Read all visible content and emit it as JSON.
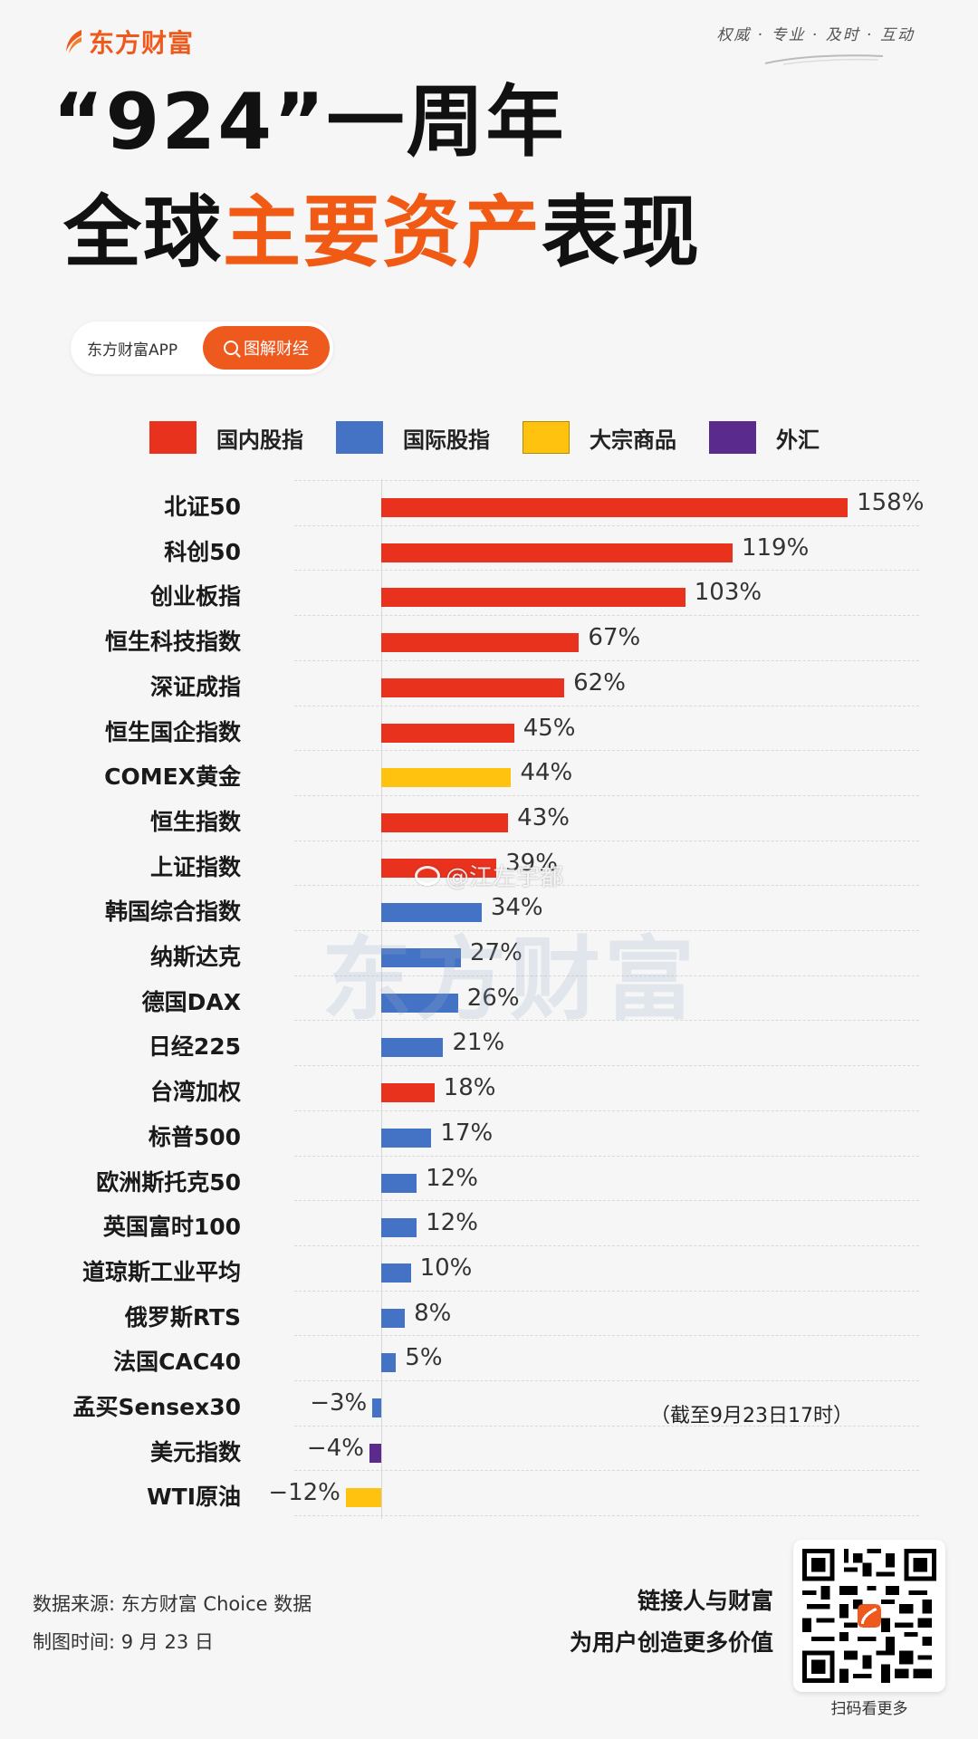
{
  "header": {
    "brand": "东方财富",
    "slogan": "权威 · 专业 · 及时 · 互动"
  },
  "title": {
    "line1": "“924”一周年",
    "line2_prefix": "全球",
    "line2_highlight": "主要资产",
    "line2_suffix": "表现"
  },
  "search_pill": {
    "brand_text": "东方财富APP",
    "button_label": "图解财经"
  },
  "colors": {
    "domestic": "#e8321e",
    "international": "#4472c4",
    "commodity": "#ffc20e",
    "forex": "#5a2a8c",
    "accent": "#ee5a1e"
  },
  "legend": [
    {
      "label": "国内股指",
      "color": "#e8321e"
    },
    {
      "label": "国际股指",
      "color": "#4472c4"
    },
    {
      "label": "大宗商品",
      "color": "#ffc20e"
    },
    {
      "label": "外汇",
      "color": "#5a2a8c"
    }
  ],
  "chart_data": {
    "type": "bar",
    "orientation": "horizontal",
    "title": "“924”一周年 全球主要资产表现",
    "xlabel": "",
    "ylabel": "",
    "unit": "%",
    "grid": true,
    "legend_position": "top",
    "categories": [
      "北证50",
      "科创50",
      "创业板指",
      "恒生科技指数",
      "深证成指",
      "恒生国企指数",
      "COMEX黄金",
      "恒生指数",
      "上证指数",
      "韩国综合指数",
      "纳斯达克",
      "德国DAX",
      "日经225",
      "台湾加权",
      "标普500",
      "欧洲斯托克50",
      "英国富时100",
      "道琼斯工业平均",
      "俄罗斯RTS",
      "法国CAC40",
      "孟买Sensex30",
      "美元指数",
      "WTI原油"
    ],
    "values": [
      158,
      119,
      103,
      67,
      62,
      45,
      44,
      43,
      39,
      34,
      27,
      26,
      21,
      18,
      17,
      12,
      12,
      10,
      8,
      5,
      -3,
      -4,
      -12
    ],
    "labels": [
      "158%",
      "119%",
      "103%",
      "67%",
      "62%",
      "45%",
      "44%",
      "43%",
      "39%",
      "34%",
      "27%",
      "26%",
      "21%",
      "18%",
      "17%",
      "12%",
      "12%",
      "10%",
      "8%",
      "5%",
      "−3%",
      "−4%",
      "−12%"
    ],
    "groups": [
      "domestic",
      "domestic",
      "domestic",
      "domestic",
      "domestic",
      "domestic",
      "commodity",
      "domestic",
      "domestic",
      "international",
      "international",
      "international",
      "international",
      "domestic",
      "international",
      "international",
      "international",
      "international",
      "international",
      "international",
      "international",
      "forex",
      "commodity"
    ],
    "series": [
      {
        "name": "国内股指",
        "color": "#e8321e"
      },
      {
        "name": "国际股指",
        "color": "#4472c4"
      },
      {
        "name": "大宗商品",
        "color": "#ffc20e"
      },
      {
        "name": "外汇",
        "color": "#5a2a8c"
      }
    ],
    "annotation": "（截至9月23日17时）"
  },
  "watermarks": {
    "brand": "东方财富",
    "weibo": "@江左宇都"
  },
  "footer": {
    "source": "数据来源: 东方财富 Choice 数据",
    "made_time": "制图时间: 9 月 23 日",
    "tagline1": "链接人与财富",
    "tagline2": "为用户创造更多价值",
    "qr_caption": "扫码看更多"
  }
}
